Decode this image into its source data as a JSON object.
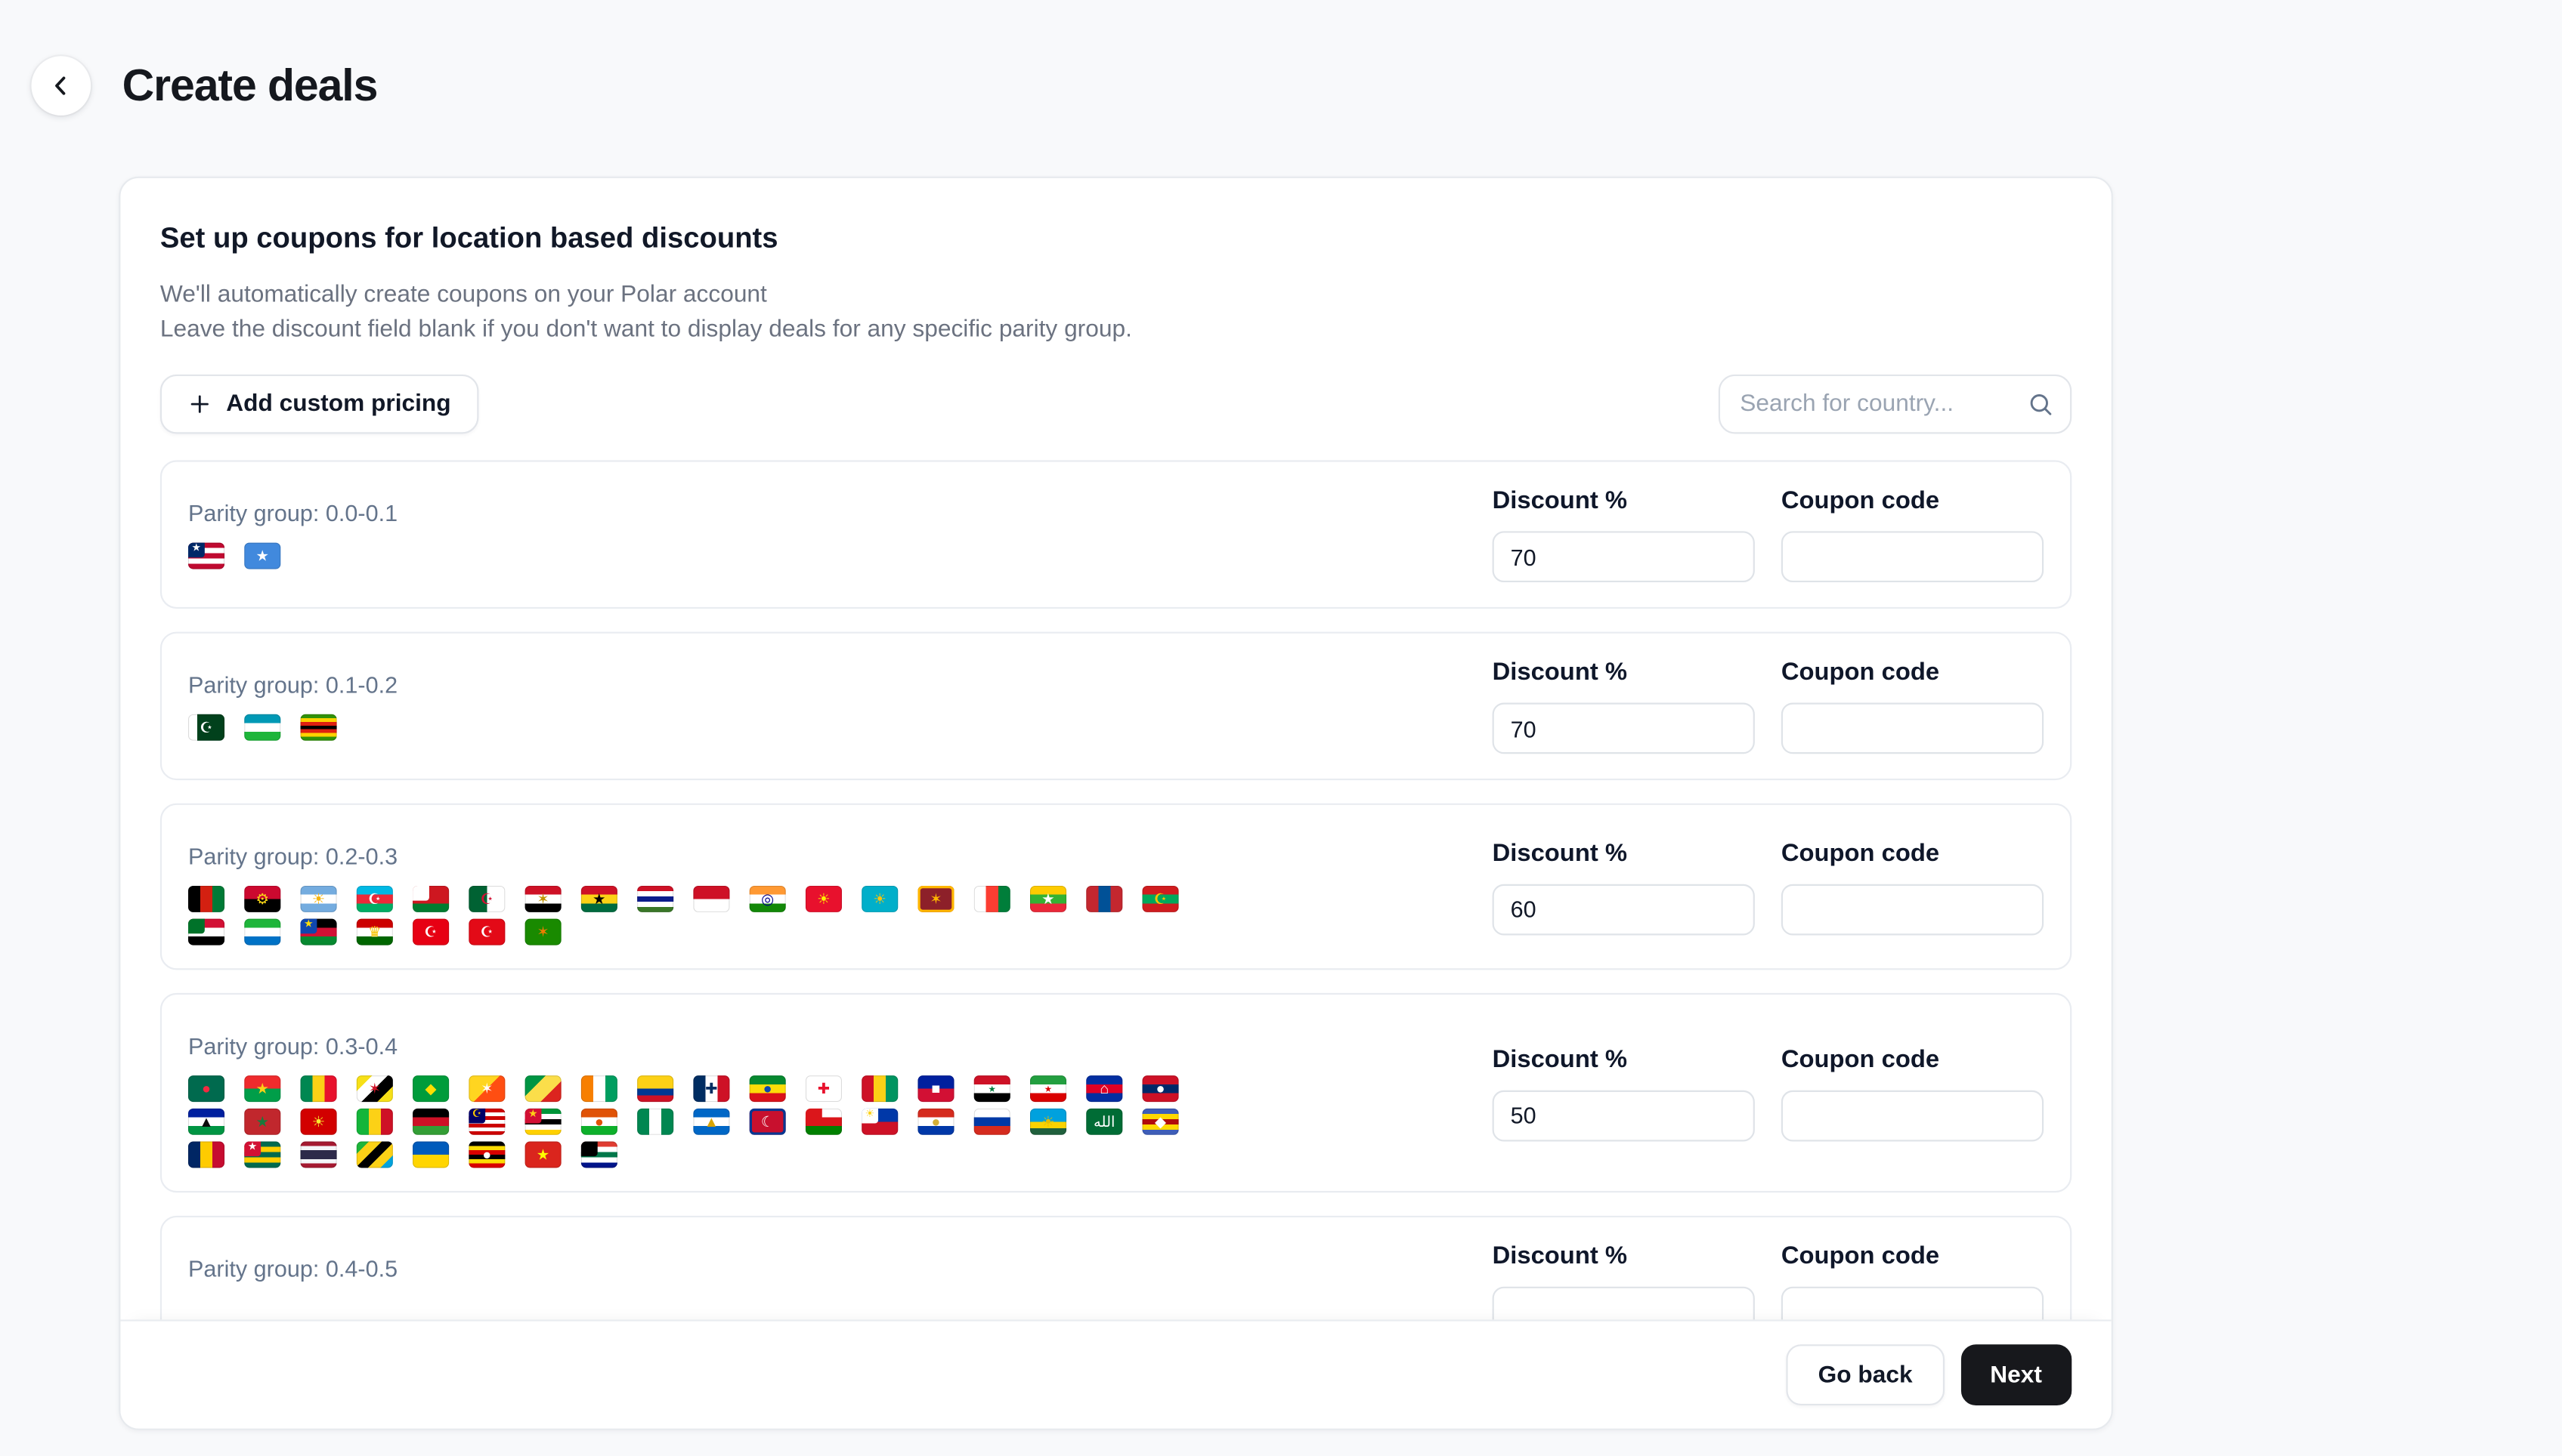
{
  "page": {
    "title": "Create deals"
  },
  "panel": {
    "heading": "Set up coupons for location based discounts",
    "description_lines": [
      "We'll automatically create coupons on your Polar account",
      "Leave the discount field blank if you don't want to display deals for any specific parity group."
    ],
    "add_button_label": "Add custom pricing",
    "search_placeholder": "Search for country..."
  },
  "columns": {
    "discount": "Discount %",
    "coupon": "Coupon code"
  },
  "footer": {
    "go_back_label": "Go back",
    "next_label": "Next"
  },
  "icons": [
    "back-chevron-icon",
    "plus-icon",
    "search-icon"
  ],
  "colors": {
    "page_bg": "#f8f9fb",
    "card_bg": "#ffffff",
    "primary_button": "#17181c",
    "muted_text": "#6b7280",
    "border": "#e7eaee"
  },
  "groups": [
    {
      "label": "Parity group: 0.0-0.1",
      "discount": "70",
      "coupon": "",
      "flags": [
        {
          "name": "Liberia",
          "emoji": "🇱🇷",
          "dir": "h",
          "colors": [
            "#bf0a30",
            "#fff",
            "#bf0a30",
            "#fff",
            "#bf0a30"
          ],
          "canton": "#002868",
          "sym": "★",
          "symc": "#fff"
        },
        {
          "name": "Somalia",
          "emoji": "🇸🇴",
          "dir": "solid",
          "colors": [
            "#4189dd"
          ],
          "sym": "★",
          "symc": "#fff"
        }
      ]
    },
    {
      "label": "Parity group: 0.1-0.2",
      "discount": "70",
      "coupon": "",
      "flags": [
        {
          "name": "Pakistan",
          "emoji": "🇵🇰",
          "dir": "v",
          "colors": [
            "#fff",
            "#01411c",
            "#01411c",
            "#01411c"
          ],
          "sym": "☪",
          "symc": "#fff"
        },
        {
          "name": "Uzbekistan",
          "emoji": "🇺🇿",
          "dir": "h",
          "colors": [
            "#0099b5",
            "#fff",
            "#1eb53a"
          ]
        },
        {
          "name": "Zimbabwe",
          "emoji": "🇿🇼",
          "dir": "h",
          "colors": [
            "#319208",
            "#ffd200",
            "#de2010",
            "#000",
            "#de2010",
            "#ffd200",
            "#319208"
          ]
        }
      ]
    },
    {
      "label": "Parity group: 0.2-0.3",
      "discount": "60",
      "coupon": "",
      "flags": [
        {
          "name": "Afghanistan",
          "emoji": "🇦🇫",
          "dir": "v",
          "colors": [
            "#000",
            "#d32011",
            "#007a36"
          ]
        },
        {
          "name": "Angola",
          "emoji": "🇦🇴",
          "dir": "h",
          "colors": [
            "#cc092f",
            "#000"
          ],
          "sym": "⚙",
          "symc": "#f9d616"
        },
        {
          "name": "Argentina",
          "emoji": "🇦🇷",
          "dir": "h",
          "colors": [
            "#74acdf",
            "#fff",
            "#74acdf"
          ],
          "sym": "☀",
          "symc": "#f6b40e"
        },
        {
          "name": "Azerbaijan",
          "emoji": "🇦🇿",
          "dir": "h",
          "colors": [
            "#00b9e4",
            "#ed2939",
            "#00ae65"
          ],
          "sym": "☪",
          "symc": "#fff"
        },
        {
          "name": "Belarus",
          "emoji": "🇧🇾",
          "dir": "h",
          "colors": [
            "#ce1720",
            "#ce1720",
            "#007c30"
          ],
          "canton": "#fff"
        },
        {
          "name": "Algeria",
          "emoji": "🇩🇿",
          "dir": "v",
          "colors": [
            "#006233",
            "#fff"
          ],
          "sym": "☪",
          "symc": "#d21034"
        },
        {
          "name": "Egypt",
          "emoji": "🇪🇬",
          "dir": "h",
          "colors": [
            "#ce1126",
            "#fff",
            "#000"
          ],
          "sym": "✶",
          "symc": "#c09300"
        },
        {
          "name": "Ghana",
          "emoji": "🇬🇭",
          "dir": "h",
          "colors": [
            "#ce1126",
            "#fcd116",
            "#006b3f"
          ],
          "sym": "★",
          "symc": "#000"
        },
        {
          "name": "Gambia",
          "emoji": "🇬🇲",
          "dir": "h",
          "colors": [
            "#ce1126",
            "#fff",
            "#0c1c8c",
            "#fff",
            "#3a7728"
          ]
        },
        {
          "name": "Indonesia",
          "emoji": "🇮🇩",
          "dir": "h",
          "colors": [
            "#ce1126",
            "#fff"
          ]
        },
        {
          "name": "India",
          "emoji": "🇮🇳",
          "dir": "h",
          "colors": [
            "#ff9933",
            "#fff",
            "#138808"
          ],
          "sym": "◎",
          "symc": "#000088"
        },
        {
          "name": "Kyrgyzstan",
          "emoji": "🇰🇬",
          "dir": "solid",
          "colors": [
            "#e8112d"
          ],
          "sym": "☀",
          "symc": "#ffef00"
        },
        {
          "name": "Kazakhstan",
          "emoji": "🇰🇿",
          "dir": "solid",
          "colors": [
            "#00afca"
          ],
          "sym": "☀",
          "symc": "#fec50c"
        },
        {
          "name": "Sri Lanka",
          "emoji": "🇱🇰",
          "dir": "solid",
          "colors": [
            "#8d2029"
          ],
          "sym": "✶",
          "symc": "#ffb700",
          "ring": "#ffb700"
        },
        {
          "name": "Madagascar",
          "emoji": "🇲🇬",
          "dir": "v",
          "colors": [
            "#fff",
            "#fc3d32",
            "#007e3a"
          ]
        },
        {
          "name": "Myanmar",
          "emoji": "🇲🇲",
          "dir": "h",
          "colors": [
            "#fecb00",
            "#34b233",
            "#ea2839"
          ],
          "sym": "★",
          "symc": "#fff"
        },
        {
          "name": "Mongolia",
          "emoji": "🇲🇳",
          "dir": "v",
          "colors": [
            "#c4272f",
            "#015197",
            "#c4272f"
          ]
        },
        {
          "name": "Mauritania",
          "emoji": "🇲🇷",
          "dir": "h",
          "colors": [
            "#d01c1f",
            "#00a95c",
            "#d01c1f"
          ],
          "sym": "☪",
          "symc": "#ffc400"
        },
        {
          "name": "Sudan",
          "emoji": "🇸🇩",
          "dir": "h",
          "colors": [
            "#d21034",
            "#fff",
            "#000"
          ],
          "canton": "#007229"
        },
        {
          "name": "Sierra Leone",
          "emoji": "🇸🇱",
          "dir": "h",
          "colors": [
            "#1eb53a",
            "#fff",
            "#0072c6"
          ]
        },
        {
          "name": "South Sudan",
          "emoji": "🇸🇸",
          "dir": "h",
          "colors": [
            "#000",
            "#d21034",
            "#078930"
          ],
          "canton": "#0f47af",
          "sym": "★",
          "symc": "#fcdd09"
        },
        {
          "name": "Tajikistan",
          "emoji": "🇹🇯",
          "dir": "h",
          "colors": [
            "#cc0000",
            "#fff",
            "#006600"
          ],
          "sym": "♛",
          "symc": "#f8c300"
        },
        {
          "name": "Tunisia",
          "emoji": "🇹🇳",
          "dir": "solid",
          "colors": [
            "#e70013"
          ],
          "sym": "☪",
          "symc": "#fff"
        },
        {
          "name": "Turkey",
          "emoji": "🇹🇷",
          "dir": "solid",
          "colors": [
            "#e30a17"
          ],
          "sym": "☪",
          "symc": "#fff"
        },
        {
          "name": "Zambia",
          "emoji": "🇿🇲",
          "dir": "solid",
          "colors": [
            "#198a00"
          ],
          "sym": "✶",
          "symc": "#ef7d00"
        }
      ]
    },
    {
      "label": "Parity group: 0.3-0.4",
      "discount": "50",
      "coupon": "",
      "flags": [
        {
          "name": "Bangladesh",
          "emoji": "🇧🇩",
          "dir": "solid",
          "colors": [
            "#006a4e"
          ],
          "sym": "●",
          "symc": "#f42a41"
        },
        {
          "name": "Burkina Faso",
          "emoji": "🇧🇫",
          "dir": "h",
          "colors": [
            "#ef2b2d",
            "#009e49"
          ],
          "sym": "★",
          "symc": "#fcd116"
        },
        {
          "name": "Benin",
          "emoji": "🇧🇯",
          "dir": "v",
          "colors": [
            "#008751",
            "#fcd116",
            "#e8112d"
          ]
        },
        {
          "name": "Brunei",
          "emoji": "🇧🇳",
          "dir": "d",
          "colors": [
            "#f7e017",
            "#fff",
            "#000",
            "#f7e017"
          ],
          "sym": "✶",
          "symc": "#cf1126"
        },
        {
          "name": "Brazil",
          "emoji": "🇧🇷",
          "dir": "solid",
          "colors": [
            "#009c3b"
          ],
          "sym": "◆",
          "symc": "#fedf00"
        },
        {
          "name": "Bhutan",
          "emoji": "🇧🇹",
          "dir": "d",
          "colors": [
            "#ffd520",
            "#ff4e12"
          ],
          "sym": "✶",
          "symc": "#fff"
        },
        {
          "name": "Congo",
          "emoji": "🇨🇬",
          "dir": "d",
          "colors": [
            "#009543",
            "#fbde4a",
            "#dc241f"
          ]
        },
        {
          "name": "Cote d'Ivoire",
          "emoji": "🇨🇮",
          "dir": "v",
          "colors": [
            "#f77f00",
            "#fff",
            "#009e60"
          ]
        },
        {
          "name": "Colombia",
          "emoji": "🇨🇴",
          "dir": "h",
          "colors": [
            "#fcd116",
            "#fcd116",
            "#003893",
            "#ce1126"
          ]
        },
        {
          "name": "Dominican Republic",
          "emoji": "🇩🇴",
          "dir": "v",
          "colors": [
            "#002d62",
            "#fff",
            "#ce1126"
          ],
          "sym": "✚",
          "symc": "#002d62"
        },
        {
          "name": "Ethiopia",
          "emoji": "🇪🇹",
          "dir": "h",
          "colors": [
            "#078930",
            "#fcdd09",
            "#da121a"
          ],
          "sym": "●",
          "symc": "#0f47af"
        },
        {
          "name": "Georgia",
          "emoji": "🇬🇪",
          "dir": "solid",
          "colors": [
            "#fff"
          ],
          "sym": "✚",
          "symc": "#e8112d"
        },
        {
          "name": "Guinea",
          "emoji": "🇬🇳",
          "dir": "v",
          "colors": [
            "#ce1126",
            "#fcd116",
            "#009460"
          ]
        },
        {
          "name": "Haiti",
          "emoji": "🇭🇹",
          "dir": "h",
          "colors": [
            "#00209f",
            "#d21034"
          ],
          "sym": "■",
          "symc": "#fff"
        },
        {
          "name": "Iraq",
          "emoji": "🇮🇶",
          "dir": "h",
          "colors": [
            "#ce1126",
            "#fff",
            "#000"
          ],
          "sym": "٭",
          "symc": "#007a3d"
        },
        {
          "name": "Iran",
          "emoji": "🇮🇷",
          "dir": "h",
          "colors": [
            "#239f40",
            "#fff",
            "#da0000"
          ],
          "sym": "٭",
          "symc": "#da0000"
        },
        {
          "name": "Cambodia",
          "emoji": "🇰🇭",
          "dir": "h",
          "colors": [
            "#032ea1",
            "#e00025",
            "#032ea1"
          ],
          "sym": "⌂",
          "symc": "#fff"
        },
        {
          "name": "Laos",
          "emoji": "🇱🇦",
          "dir": "h",
          "colors": [
            "#ce1126",
            "#002868",
            "#ce1126"
          ],
          "sym": "●",
          "symc": "#fff"
        },
        {
          "name": "Lesotho",
          "emoji": "🇱🇸",
          "dir": "h",
          "colors": [
            "#00209f",
            "#fff",
            "#009543"
          ],
          "sym": "▲",
          "symc": "#0b0b0b"
        },
        {
          "name": "Morocco",
          "emoji": "🇲🇦",
          "dir": "solid",
          "colors": [
            "#c1272d"
          ],
          "sym": "★",
          "symc": "#1a7a3c"
        },
        {
          "name": "North Macedonia",
          "emoji": "🇲🇰",
          "dir": "solid",
          "colors": [
            "#d20000"
          ],
          "sym": "☀",
          "symc": "#f8e92e"
        },
        {
          "name": "Mali",
          "emoji": "🇲🇱",
          "dir": "v",
          "colors": [
            "#14b53a",
            "#fcd116",
            "#ce1126"
          ]
        },
        {
          "name": "Malawi",
          "emoji": "🇲🇼",
          "dir": "h",
          "colors": [
            "#000",
            "#ce1126",
            "#339e35"
          ]
        },
        {
          "name": "Malaysia",
          "emoji": "🇲🇾",
          "dir": "h",
          "colors": [
            "#cc0001",
            "#fff",
            "#cc0001",
            "#fff",
            "#cc0001",
            "#fff",
            "#cc0001"
          ],
          "canton": "#010066",
          "sym": "☪",
          "symc": "#ffcc00"
        },
        {
          "name": "Mozambique",
          "emoji": "🇲🇿",
          "dir": "h",
          "colors": [
            "#009639",
            "#fff",
            "#000",
            "#fff",
            "#ffd100"
          ],
          "canton": "#d21034",
          "sym": "★",
          "symc": "#fcd116"
        },
        {
          "name": "Niger",
          "emoji": "🇳🇪",
          "dir": "h",
          "colors": [
            "#e05206",
            "#fff",
            "#0db02b"
          ],
          "sym": "●",
          "symc": "#e05206"
        },
        {
          "name": "Nigeria",
          "emoji": "🇳🇬",
          "dir": "v",
          "colors": [
            "#008751",
            "#fff",
            "#008751"
          ]
        },
        {
          "name": "Nicaragua",
          "emoji": "🇳🇮",
          "dir": "h",
          "colors": [
            "#0067c6",
            "#fff",
            "#0067c6"
          ],
          "sym": "▲",
          "symc": "#d9a400"
        },
        {
          "name": "Nepal",
          "emoji": "🇳🇵",
          "dir": "solid",
          "colors": [
            "#c8102e"
          ],
          "sym": "☾",
          "symc": "#fff",
          "ring": "#003893"
        },
        {
          "name": "Oman",
          "emoji": "🇴🇲",
          "dir": "h",
          "colors": [
            "#fff",
            "#db161b",
            "#008000"
          ],
          "canton": "#db161b"
        },
        {
          "name": "Philippines",
          "emoji": "🇵🇭",
          "dir": "h",
          "colors": [
            "#0038a8",
            "#ce1126"
          ],
          "canton": "#fff",
          "sym": "☀",
          "symc": "#fcd116"
        },
        {
          "name": "Paraguay",
          "emoji": "🇵🇾",
          "dir": "h",
          "colors": [
            "#d52b1e",
            "#fff",
            "#0038a8"
          ],
          "sym": "●",
          "symc": "#d4af37"
        },
        {
          "name": "Russia",
          "emoji": "🇷🇺",
          "dir": "h",
          "colors": [
            "#fff",
            "#0039a6",
            "#d52b1e"
          ]
        },
        {
          "name": "Rwanda",
          "emoji": "🇷🇼",
          "dir": "h",
          "colors": [
            "#00a1de",
            "#00a1de",
            "#fad201",
            "#20603d"
          ],
          "sym": "☀",
          "symc": "#e5be01"
        },
        {
          "name": "Saudi Arabia",
          "emoji": "🇸🇦",
          "dir": "solid",
          "colors": [
            "#006c35"
          ],
          "sym": "الله",
          "symc": "#fff"
        },
        {
          "name": "Eswatini",
          "emoji": "🇸🇿",
          "dir": "h",
          "colors": [
            "#3e5eb9",
            "#ffd900",
            "#b10c0c",
            "#ffd900",
            "#3e5eb9"
          ],
          "sym": "◆",
          "symc": "#fff"
        },
        {
          "name": "Chad",
          "emoji": "🇹🇩",
          "dir": "v",
          "colors": [
            "#002664",
            "#fecb00",
            "#c60c30"
          ]
        },
        {
          "name": "Togo",
          "emoji": "🇹🇬",
          "dir": "h",
          "colors": [
            "#006a4e",
            "#ffce00",
            "#006a4e",
            "#ffce00",
            "#006a4e"
          ],
          "canton": "#d21034",
          "sym": "★",
          "symc": "#fff"
        },
        {
          "name": "Thailand",
          "emoji": "🇹🇭",
          "dir": "h",
          "colors": [
            "#a51931",
            "#f4f5f8",
            "#2d2a4a",
            "#2d2a4a",
            "#f4f5f8",
            "#a51931"
          ]
        },
        {
          "name": "Tanzania",
          "emoji": "🇹🇿",
          "dir": "d",
          "colors": [
            "#1eb53a",
            "#fcd116",
            "#000",
            "#fcd116",
            "#00a3dd"
          ]
        },
        {
          "name": "Ukraine",
          "emoji": "🇺🇦",
          "dir": "h",
          "colors": [
            "#005bbb",
            "#ffd500"
          ]
        },
        {
          "name": "Uganda",
          "emoji": "🇺🇬",
          "dir": "h",
          "colors": [
            "#000",
            "#fcdc04",
            "#d90000",
            "#000",
            "#fcdc04",
            "#d90000"
          ],
          "sym": "●",
          "symc": "#fff"
        },
        {
          "name": "Vietnam",
          "emoji": "🇻🇳",
          "dir": "solid",
          "colors": [
            "#da251d"
          ],
          "sym": "★",
          "symc": "#ffff00"
        },
        {
          "name": "South Africa",
          "emoji": "🇿🇦",
          "dir": "h",
          "colors": [
            "#e03c31",
            "#fff",
            "#007749",
            "#fff",
            "#001489"
          ],
          "canton": "#000"
        }
      ]
    },
    {
      "label": "Parity group: 0.4-0.5",
      "discount": "",
      "coupon": "",
      "flags": []
    }
  ]
}
